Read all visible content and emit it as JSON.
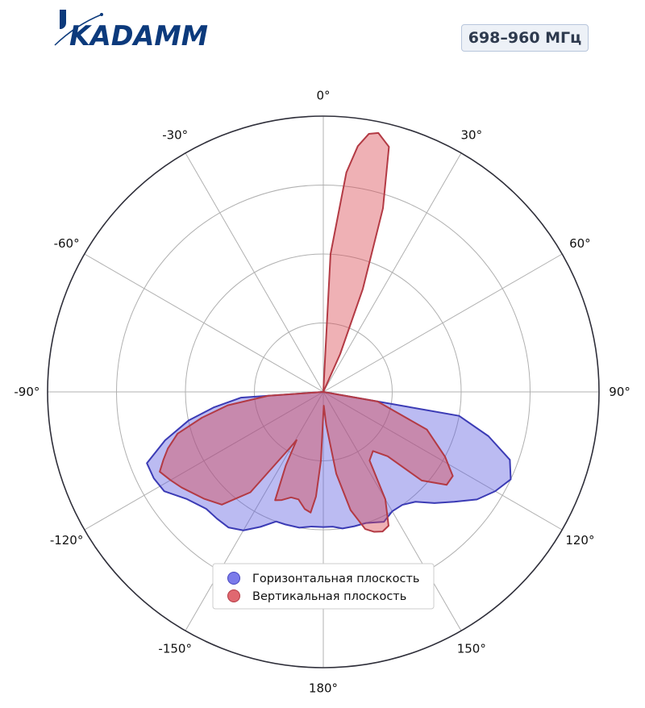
{
  "brand": {
    "logo_text": "KADAMM",
    "logo_color": "#0c3a7c"
  },
  "badge": {
    "text": "698–960 МГц"
  },
  "chart_data": {
    "type": "polar-area",
    "theta_zero": "top",
    "theta_direction": "clockwise",
    "theta_ticks": [
      "0°",
      "30°",
      "60°",
      "90°",
      "120°",
      "150°",
      "180°",
      "-150°",
      "-120°",
      "-90°",
      "-60°",
      "-30°"
    ],
    "theta_tick_degrees": [
      0,
      30,
      60,
      90,
      120,
      150,
      180,
      210,
      240,
      270,
      300,
      330
    ],
    "r_max": 1.0,
    "r_grid": [
      0.25,
      0.5,
      0.75,
      1.0
    ],
    "legend_position": "lower-center",
    "series": [
      {
        "name": "Горизонтальная плоскость",
        "color": "#5c5ce0",
        "stroke": "#3b3bb5",
        "points": [
          [
            90,
            0.0
          ],
          [
            100,
            0.5
          ],
          [
            105,
            0.62
          ],
          [
            110,
            0.72
          ],
          [
            115,
            0.75
          ],
          [
            120,
            0.72
          ],
          [
            125,
            0.68
          ],
          [
            130,
            0.62
          ],
          [
            135,
            0.57
          ],
          [
            140,
            0.52
          ],
          [
            145,
            0.5
          ],
          [
            150,
            0.5
          ],
          [
            155,
            0.52
          ],
          [
            158,
            0.51
          ],
          [
            162,
            0.5
          ],
          [
            167,
            0.5
          ],
          [
            172,
            0.5
          ],
          [
            176,
            0.49
          ],
          [
            180,
            0.49
          ],
          [
            185,
            0.49
          ],
          [
            190,
            0.5
          ],
          [
            196,
            0.5
          ],
          [
            200,
            0.5
          ],
          [
            205,
            0.54
          ],
          [
            210,
            0.58
          ],
          [
            215,
            0.6
          ],
          [
            220,
            0.6
          ],
          [
            225,
            0.6
          ],
          [
            232,
            0.63
          ],
          [
            238,
            0.68
          ],
          [
            243,
            0.69
          ],
          [
            248,
            0.69
          ],
          [
            253,
            0.6
          ],
          [
            258,
            0.5
          ],
          [
            262,
            0.4
          ],
          [
            266,
            0.3
          ],
          [
            270,
            0.0
          ]
        ]
      },
      {
        "name": "Вертикальная плоскость",
        "color": "#d9454f",
        "stroke": "#b33a44",
        "points": [
          [
            0,
            0.0
          ],
          [
            3,
            0.5
          ],
          [
            6,
            0.8
          ],
          [
            8,
            0.9
          ],
          [
            10,
            0.95
          ],
          [
            12,
            0.96
          ],
          [
            15,
            0.92
          ],
          [
            18,
            0.7
          ],
          [
            21,
            0.4
          ],
          [
            24,
            0.15
          ],
          [
            30,
            0.0
          ],
          [
            90,
            0.0
          ],
          [
            100,
            0.2
          ],
          [
            110,
            0.4
          ],
          [
            118,
            0.5
          ],
          [
            123,
            0.56
          ],
          [
            127,
            0.56
          ],
          [
            132,
            0.48
          ],
          [
            135,
            0.33
          ],
          [
            140,
            0.28
          ],
          [
            146,
            0.3
          ],
          [
            150,
            0.45
          ],
          [
            154,
            0.54
          ],
          [
            157,
            0.55
          ],
          [
            160,
            0.54
          ],
          [
            163,
            0.52
          ],
          [
            167,
            0.44
          ],
          [
            171,
            0.3
          ],
          [
            175,
            0.12
          ],
          [
            178,
            0.05
          ],
          [
            180,
            0.08
          ],
          [
            182,
            0.25
          ],
          [
            184,
            0.38
          ],
          [
            186,
            0.44
          ],
          [
            189,
            0.43
          ],
          [
            193,
            0.4
          ],
          [
            197,
            0.4
          ],
          [
            201,
            0.42
          ],
          [
            204,
            0.43
          ],
          [
            207,
            0.3
          ],
          [
            209,
            0.2
          ],
          [
            211,
            0.24
          ],
          [
            216,
            0.45
          ],
          [
            222,
            0.55
          ],
          [
            228,
            0.58
          ],
          [
            236,
            0.62
          ],
          [
            240,
            0.64
          ],
          [
            244,
            0.66
          ],
          [
            247,
            0.63
          ],
          [
            250,
            0.6
          ],
          [
            254,
            0.55
          ],
          [
            258,
            0.45
          ],
          [
            262,
            0.35
          ],
          [
            266,
            0.2
          ],
          [
            270,
            0.0
          ]
        ]
      }
    ]
  }
}
